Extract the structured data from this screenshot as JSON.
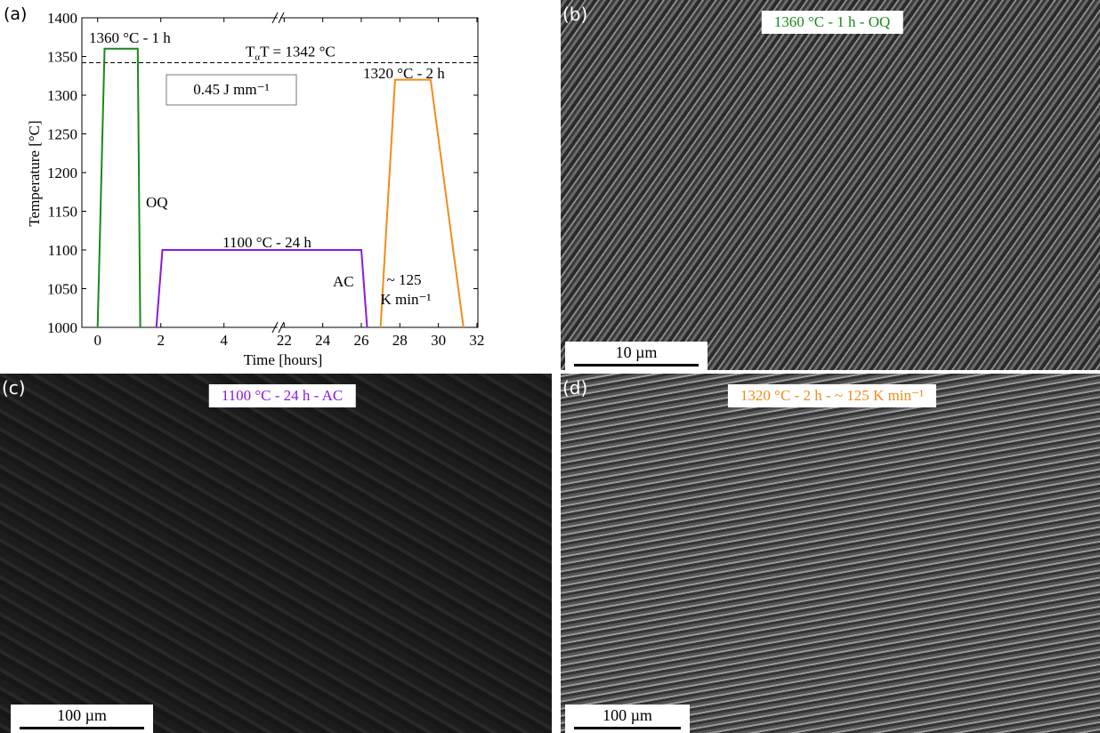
{
  "chart_data": {
    "type": "line",
    "panel_label": "(a)",
    "x_label": "Time [hours]",
    "y_label": "Temperature [°C]",
    "xlim": [
      -0.5,
      32.05
    ],
    "x_break": [
      5.7,
      21.8
    ],
    "xticks": [
      0,
      2,
      4,
      22,
      24,
      26,
      28,
      30,
      32
    ],
    "ylim": [
      1000,
      1400
    ],
    "yticks": [
      1000,
      1050,
      1100,
      1150,
      1200,
      1250,
      1300,
      1350,
      1400
    ],
    "hline": {
      "value": 1342,
      "label": "T",
      "label_sub": "α",
      "label_rest": "T = 1342 °C"
    },
    "series": [
      {
        "color": "#1a8a1a",
        "x": [
          0,
          0.22,
          1.27,
          1.35
        ],
        "values": [
          1000,
          1360,
          1360,
          1000
        ]
      },
      {
        "color": "#8a1ae0",
        "x": [
          1.86,
          2.05,
          26.0,
          26.3
        ],
        "values": [
          1000,
          1100,
          1100,
          1000
        ]
      },
      {
        "color": "#f28c1a",
        "x": [
          27.0,
          27.75,
          29.6,
          31.3
        ],
        "values": [
          1000,
          1320,
          1320,
          1000
        ]
      }
    ],
    "annotations": [
      "1360 °C - 1 h",
      "0.45 J mm⁻¹",
      "1320 °C - 2 h",
      "OQ",
      "1100 °C - 24 h",
      "AC",
      "~ 125",
      "K min⁻¹"
    ]
  },
  "images": [
    {
      "panel_label": "(b)",
      "caption": "1360 °C - 1 h - OQ",
      "caption_color": "#1a8a1a",
      "scale_bar": "10 µm"
    },
    {
      "panel_label": "(c)",
      "caption": "1100 °C - 24 h - AC",
      "caption_color": "#8a1ae0",
      "scale_bar": "100 µm"
    },
    {
      "panel_label": "(d)",
      "caption": "1320 °C - 2 h - ~ 125 K min⁻¹",
      "caption_color": "#f28c1a",
      "scale_bar": "100 µm"
    }
  ]
}
